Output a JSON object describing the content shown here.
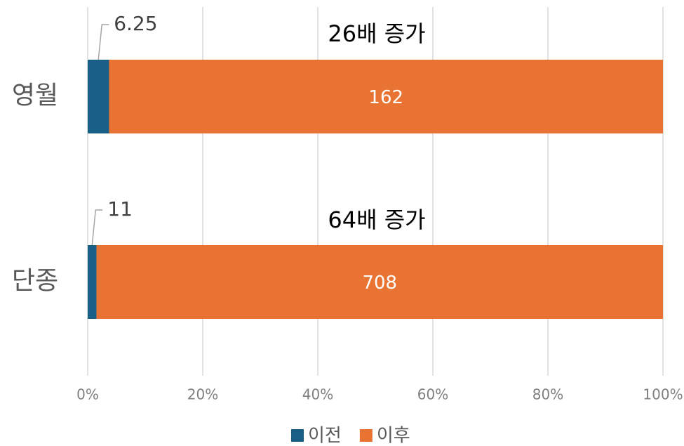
{
  "chart_data": {
    "type": "bar100h",
    "categories": [
      "영월",
      "단종"
    ],
    "series": [
      {
        "name": "이전",
        "color": "#1a5f85",
        "values": [
          6.25,
          11
        ]
      },
      {
        "name": "이후",
        "color": "#e87333",
        "values": [
          162,
          708
        ]
      }
    ],
    "annotations": [
      "26배 증가",
      "64배 증가"
    ],
    "xlim": [
      0,
      100
    ],
    "xticks": [
      {
        "value": 0,
        "label": "0%"
      },
      {
        "value": 20,
        "label": "20%"
      },
      {
        "value": 40,
        "label": "40%"
      },
      {
        "value": 60,
        "label": "60%"
      },
      {
        "value": 80,
        "label": "80%"
      },
      {
        "value": 100,
        "label": "100%"
      }
    ],
    "grid": true,
    "legend": "bottom"
  }
}
